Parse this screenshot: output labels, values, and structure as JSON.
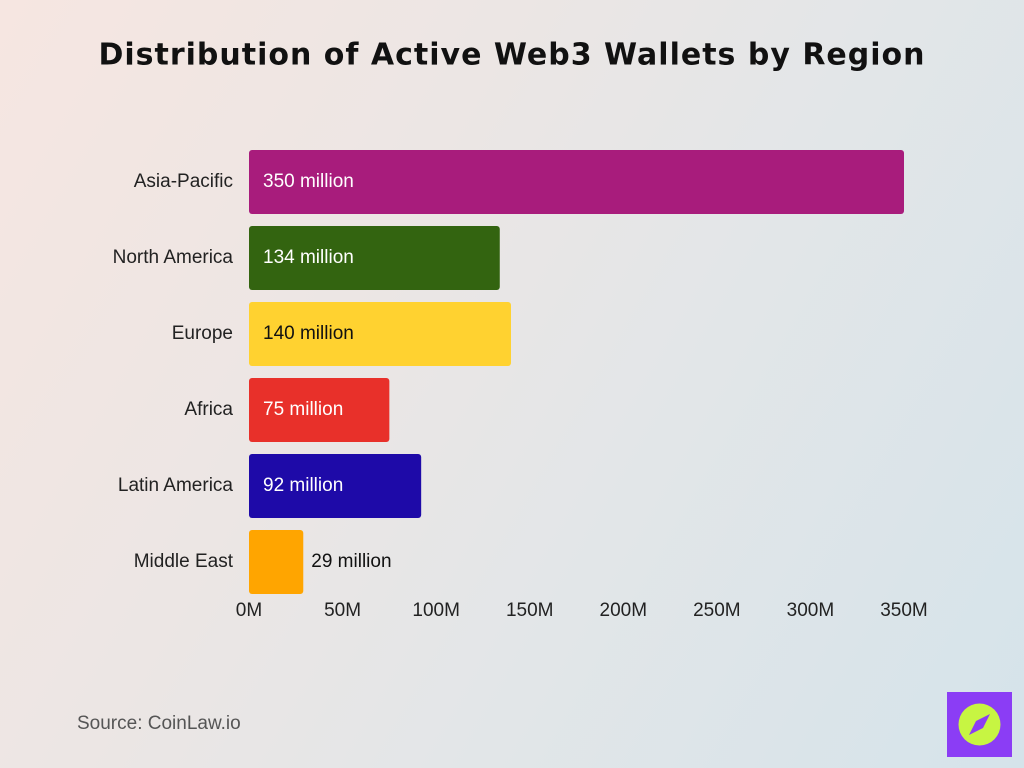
{
  "chart_data": {
    "type": "bar",
    "orientation": "horizontal",
    "title": "Distribution of Active Web3 Wallets by Region",
    "categories": [
      "Asia-Pacific",
      "North America",
      "Europe",
      "Africa",
      "Latin America",
      "Middle East"
    ],
    "values": [
      350,
      134,
      140,
      75,
      92,
      29
    ],
    "value_labels": [
      "350 million",
      "134 million",
      "140 million",
      "75 million",
      "92 million",
      "29 million"
    ],
    "colors": [
      "#a81c7c",
      "#336410",
      "#ffd230",
      "#e8302a",
      "#1e0aa8",
      "#ffa500"
    ],
    "xlim": [
      0,
      350
    ],
    "xticks": [
      {
        "value": 0,
        "label": "0M"
      },
      {
        "value": 50,
        "label": "50M"
      },
      {
        "value": 100,
        "label": "100M"
      },
      {
        "value": 150,
        "label": "150M"
      },
      {
        "value": 200,
        "label": "200M"
      },
      {
        "value": 250,
        "label": "250M"
      },
      {
        "value": 300,
        "label": "300M"
      },
      {
        "value": 350,
        "label": "350M"
      }
    ],
    "grid": false,
    "source": "Source: CoinLaw.io"
  }
}
